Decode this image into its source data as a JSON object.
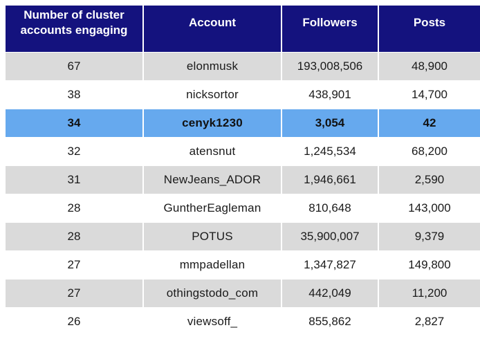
{
  "headers": {
    "cluster": "Number of cluster accounts engaging",
    "account": "Account",
    "followers": "Followers",
    "posts": "Posts"
  },
  "rows": [
    {
      "cluster": "67",
      "account": "elonmusk",
      "followers": "193,008,506",
      "posts": "48,900",
      "highlight": false
    },
    {
      "cluster": "38",
      "account": "nicksortor",
      "followers": "438,901",
      "posts": "14,700",
      "highlight": false
    },
    {
      "cluster": "34",
      "account": "cenyk1230",
      "followers": "3,054",
      "posts": "42",
      "highlight": true
    },
    {
      "cluster": "32",
      "account": "atensnut",
      "followers": "1,245,534",
      "posts": "68,200",
      "highlight": false
    },
    {
      "cluster": "31",
      "account": "NewJeans_ADOR",
      "followers": "1,946,661",
      "posts": "2,590",
      "highlight": false
    },
    {
      "cluster": "28",
      "account": "GuntherEagleman",
      "followers": "810,648",
      "posts": "143,000",
      "highlight": false
    },
    {
      "cluster": "28",
      "account": "POTUS",
      "followers": "35,900,007",
      "posts": "9,379",
      "highlight": false
    },
    {
      "cluster": "27",
      "account": "mmpadellan",
      "followers": "1,347,827",
      "posts": "149,800",
      "highlight": false
    },
    {
      "cluster": "27",
      "account": "othingstodo_com",
      "followers": "442,049",
      "posts": "11,200",
      "highlight": false
    },
    {
      "cluster": "26",
      "account": "viewsoff_",
      "followers": "855,862",
      "posts": "2,827",
      "highlight": false
    }
  ],
  "colors": {
    "header_bg": "#14127e",
    "stripe": "#dadada",
    "highlight": "#66a9ee"
  }
}
